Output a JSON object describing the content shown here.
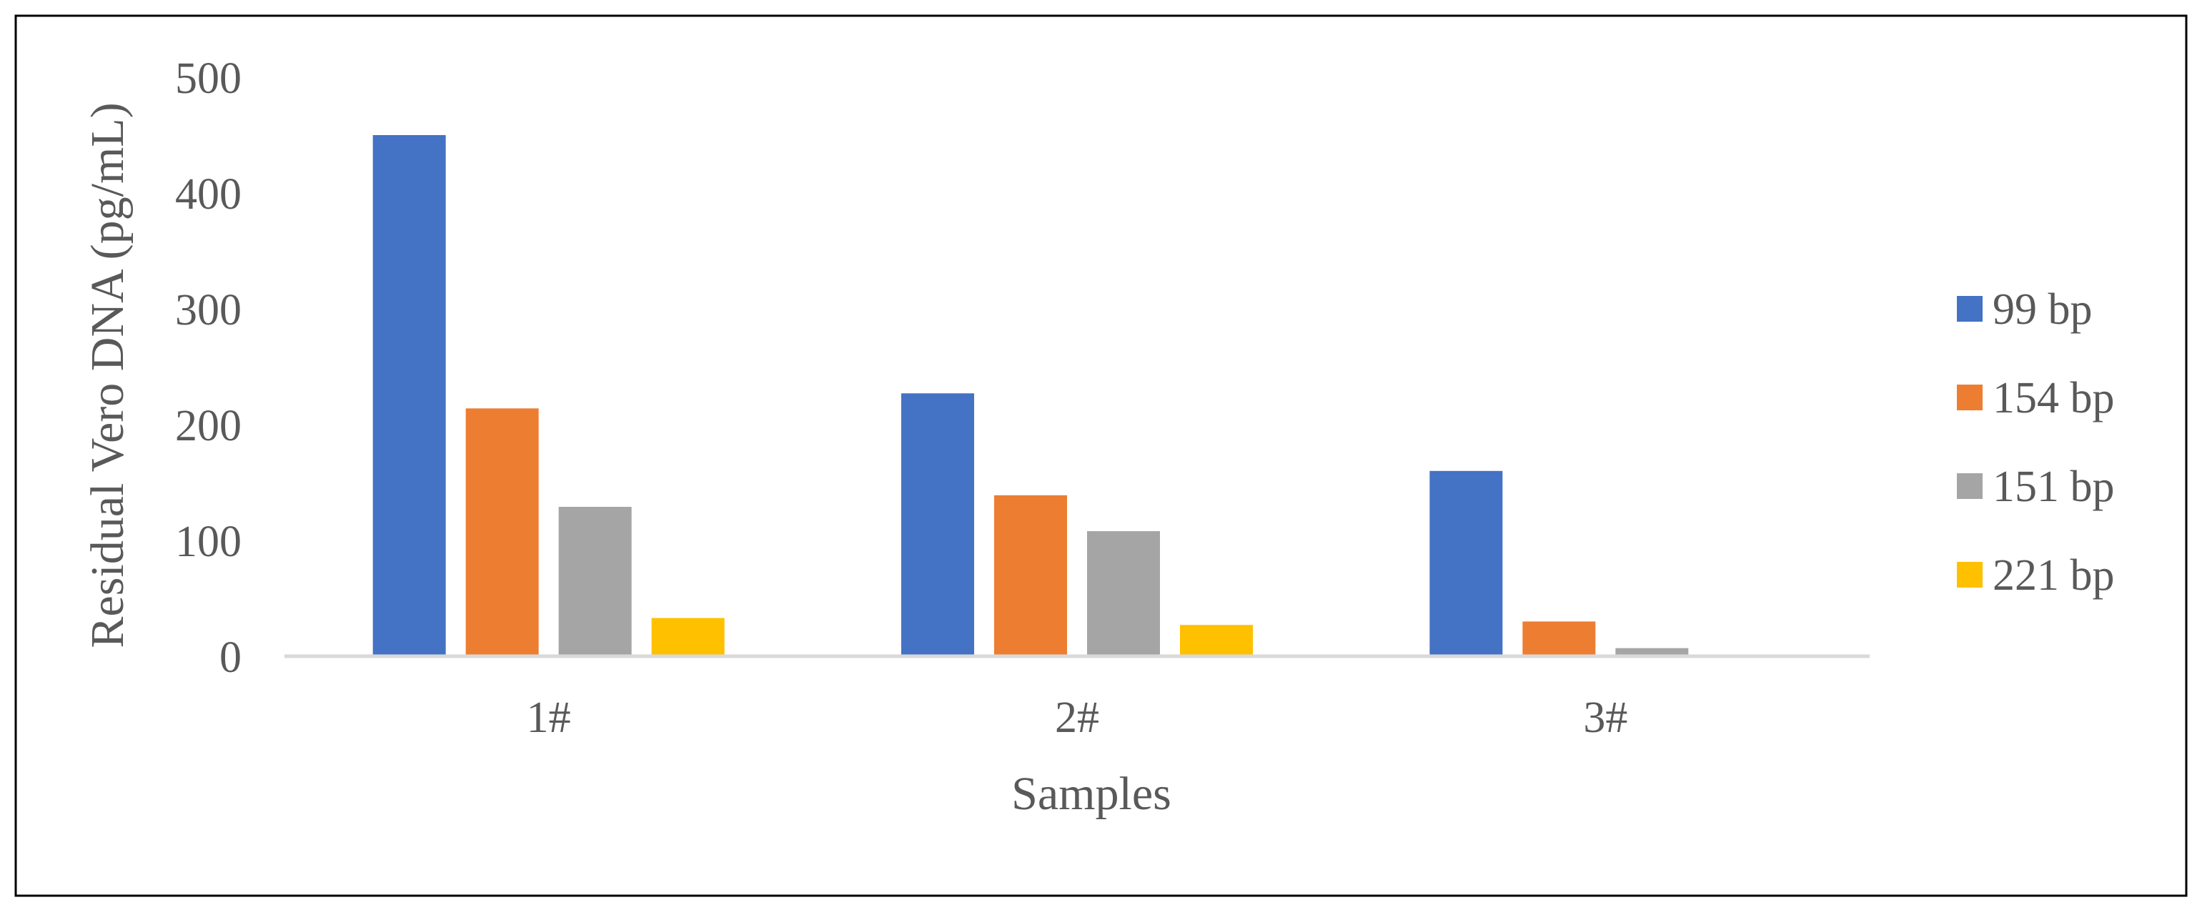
{
  "chart_data": {
    "type": "bar",
    "title": "",
    "xlabel": "Samples",
    "ylabel": "Residual Vero DNA (pg/mL)",
    "categories": [
      "1#",
      "2#",
      "3#"
    ],
    "ylim": [
      0,
      500
    ],
    "yticks": [
      "0",
      "100",
      "200",
      "300",
      "400",
      "500"
    ],
    "grid": false,
    "legend_position": "right",
    "series": [
      {
        "name": "99 bp",
        "color": "#4472C4",
        "values": [
          450,
          227,
          160
        ]
      },
      {
        "name": "154 bp",
        "color": "#ED7D31",
        "values": [
          214,
          139,
          30
        ]
      },
      {
        "name": "151 bp",
        "color": "#A5A5A5",
        "values": [
          129,
          108,
          7
        ]
      },
      {
        "name": "221 bp",
        "color": "#FFC000",
        "values": [
          33,
          27,
          0
        ]
      }
    ]
  }
}
